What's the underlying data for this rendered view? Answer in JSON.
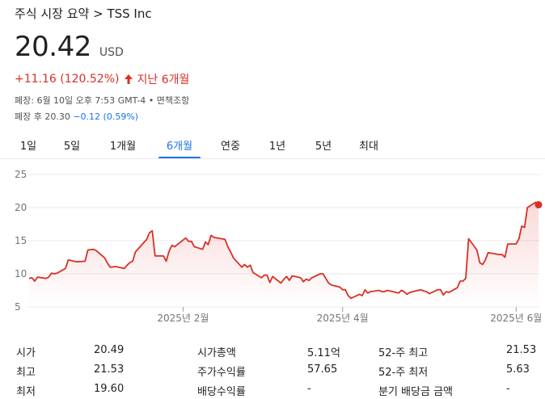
{
  "breadcrumb": "주식 시장 요약 > TSS Inc",
  "quote": {
    "price": "20.42",
    "currency": "USD",
    "change": "+11.16 (120.52%)",
    "period_label": "지난 6개월",
    "close_info": "폐장: 6월 10일 오후 7:53 GMT-4 • 면책조항",
    "after_hours_prefix": "폐장 후 20.30",
    "after_hours_change": "−0.12 (0.59%)"
  },
  "tabs": [
    "1일",
    "5일",
    "1개월",
    "6개월",
    "연중",
    "1년",
    "5년",
    "최대"
  ],
  "active_tab": 3,
  "chart_data": {
    "type": "area",
    "y_ticks": [
      "25",
      "20",
      "15",
      "10",
      "5"
    ],
    "ylim": [
      5,
      25
    ],
    "x_tick_labels": [
      "2025년 2월",
      "2025년 4월",
      "2025년 6월"
    ],
    "grid": true,
    "line_color": "#d93025",
    "x": [
      "2024-12-10",
      "2024-12-11",
      "2024-12-12",
      "2024-12-13",
      "2024-12-16",
      "2024-12-17",
      "2024-12-18",
      "2024-12-19",
      "2024-12-20",
      "2024-12-23",
      "2024-12-24",
      "2024-12-26",
      "2024-12-27",
      "2024-12-30",
      "2024-12-31",
      "2025-01-02",
      "2025-01-03",
      "2025-01-06",
      "2025-01-07",
      "2025-01-08",
      "2025-01-10",
      "2025-01-13",
      "2025-01-14",
      "2025-01-15",
      "2025-01-16",
      "2025-01-17",
      "2025-01-21",
      "2025-01-22",
      "2025-01-23",
      "2025-01-24",
      "2025-01-27",
      "2025-01-28",
      "2025-01-29",
      "2025-01-30",
      "2025-01-31",
      "2025-02-03",
      "2025-02-04",
      "2025-02-05",
      "2025-02-06",
      "2025-02-07",
      "2025-02-10",
      "2025-02-11",
      "2025-02-12",
      "2025-02-13",
      "2025-02-14",
      "2025-02-18",
      "2025-02-19",
      "2025-02-20",
      "2025-02-21",
      "2025-02-24",
      "2025-02-25",
      "2025-02-26",
      "2025-02-27",
      "2025-02-28",
      "2025-03-03",
      "2025-03-04",
      "2025-03-05",
      "2025-03-06",
      "2025-03-07",
      "2025-03-10",
      "2025-03-11",
      "2025-03-12",
      "2025-03-13",
      "2025-03-14",
      "2025-03-17",
      "2025-03-18",
      "2025-03-19",
      "2025-03-20",
      "2025-03-21",
      "2025-03-24",
      "2025-03-25",
      "2025-03-26",
      "2025-03-27",
      "2025-03-28",
      "2025-03-31",
      "2025-04-01",
      "2025-04-02",
      "2025-04-03",
      "2025-04-04",
      "2025-04-07",
      "2025-04-08",
      "2025-04-09",
      "2025-04-10",
      "2025-04-11",
      "2025-04-14",
      "2025-04-15",
      "2025-04-16",
      "2025-04-17",
      "2025-04-21",
      "2025-04-22",
      "2025-04-23",
      "2025-04-24",
      "2025-04-25",
      "2025-04-28",
      "2025-04-29",
      "2025-04-30",
      "2025-05-01",
      "2025-05-02",
      "2025-05-05",
      "2025-05-06",
      "2025-05-07",
      "2025-05-08",
      "2025-05-09",
      "2025-05-12",
      "2025-05-13",
      "2025-05-14",
      "2025-05-15",
      "2025-05-16",
      "2025-05-19",
      "2025-05-20",
      "2025-05-21",
      "2025-05-22",
      "2025-05-23",
      "2025-05-27",
      "2025-05-28",
      "2025-05-29",
      "2025-05-30",
      "2025-06-02",
      "2025-06-03",
      "2025-06-04",
      "2025-06-05",
      "2025-06-06",
      "2025-06-09",
      "2025-06-10"
    ],
    "values": [
      9.3,
      9.4,
      8.9,
      9.5,
      9.3,
      9.5,
      10.1,
      10.0,
      10.1,
      10.8,
      12.1,
      11.9,
      11.8,
      11.9,
      13.6,
      13.7,
      13.5,
      12.4,
      11.6,
      11.0,
      11.1,
      10.8,
      11.3,
      11.7,
      11.9,
      13.3,
      15.2,
      16.2,
      16.5,
      12.7,
      12.7,
      11.9,
      13.4,
      14.3,
      14.1,
      15.1,
      15.4,
      14.9,
      14.9,
      14.1,
      13.7,
      14.8,
      14.4,
      15.8,
      15.5,
      15.2,
      14.1,
      13.3,
      12.4,
      11.0,
      11.4,
      11.0,
      11.3,
      10.2,
      9.4,
      9.8,
      9.8,
      8.7,
      9.6,
      8.6,
      9.2,
      9.6,
      9.0,
      9.7,
      9.4,
      8.8,
      9.2,
      9.0,
      9.4,
      10.0,
      10.0,
      9.3,
      8.6,
      8.3,
      8.0,
      7.6,
      7.6,
      6.7,
      6.3,
      6.9,
      6.7,
      7.6,
      7.1,
      7.3,
      7.5,
      7.3,
      7.3,
      7.5,
      7.1,
      7.5,
      7.3,
      6.9,
      7.2,
      7.5,
      7.6,
      7.4,
      7.3,
      7.0,
      7.6,
      7.6,
      6.8,
      7.3,
      7.2,
      7.9,
      8.9,
      8.9,
      9.3,
      15.3,
      13.6,
      11.7,
      11.4,
      12.1,
      13.2,
      12.9,
      12.9,
      12.5,
      14.5,
      14.5,
      15.3,
      17.2,
      17.0,
      20.0,
      20.8,
      20.42
    ]
  },
  "stats": [
    {
      "label": "시가",
      "value": "20.49"
    },
    {
      "label": "최고",
      "value": "21.53"
    },
    {
      "label": "최저",
      "value": "19.60"
    },
    {
      "label": "시가총액",
      "value": "5.11억"
    },
    {
      "label": "주가수익률",
      "value": "57.65"
    },
    {
      "label": "배당수익률",
      "value": "-"
    },
    {
      "label": "52-주 최고",
      "value": "21.53"
    },
    {
      "label": "52-주 최저",
      "value": "5.63"
    },
    {
      "label": "분기 배당금 금액",
      "value": "-"
    }
  ]
}
